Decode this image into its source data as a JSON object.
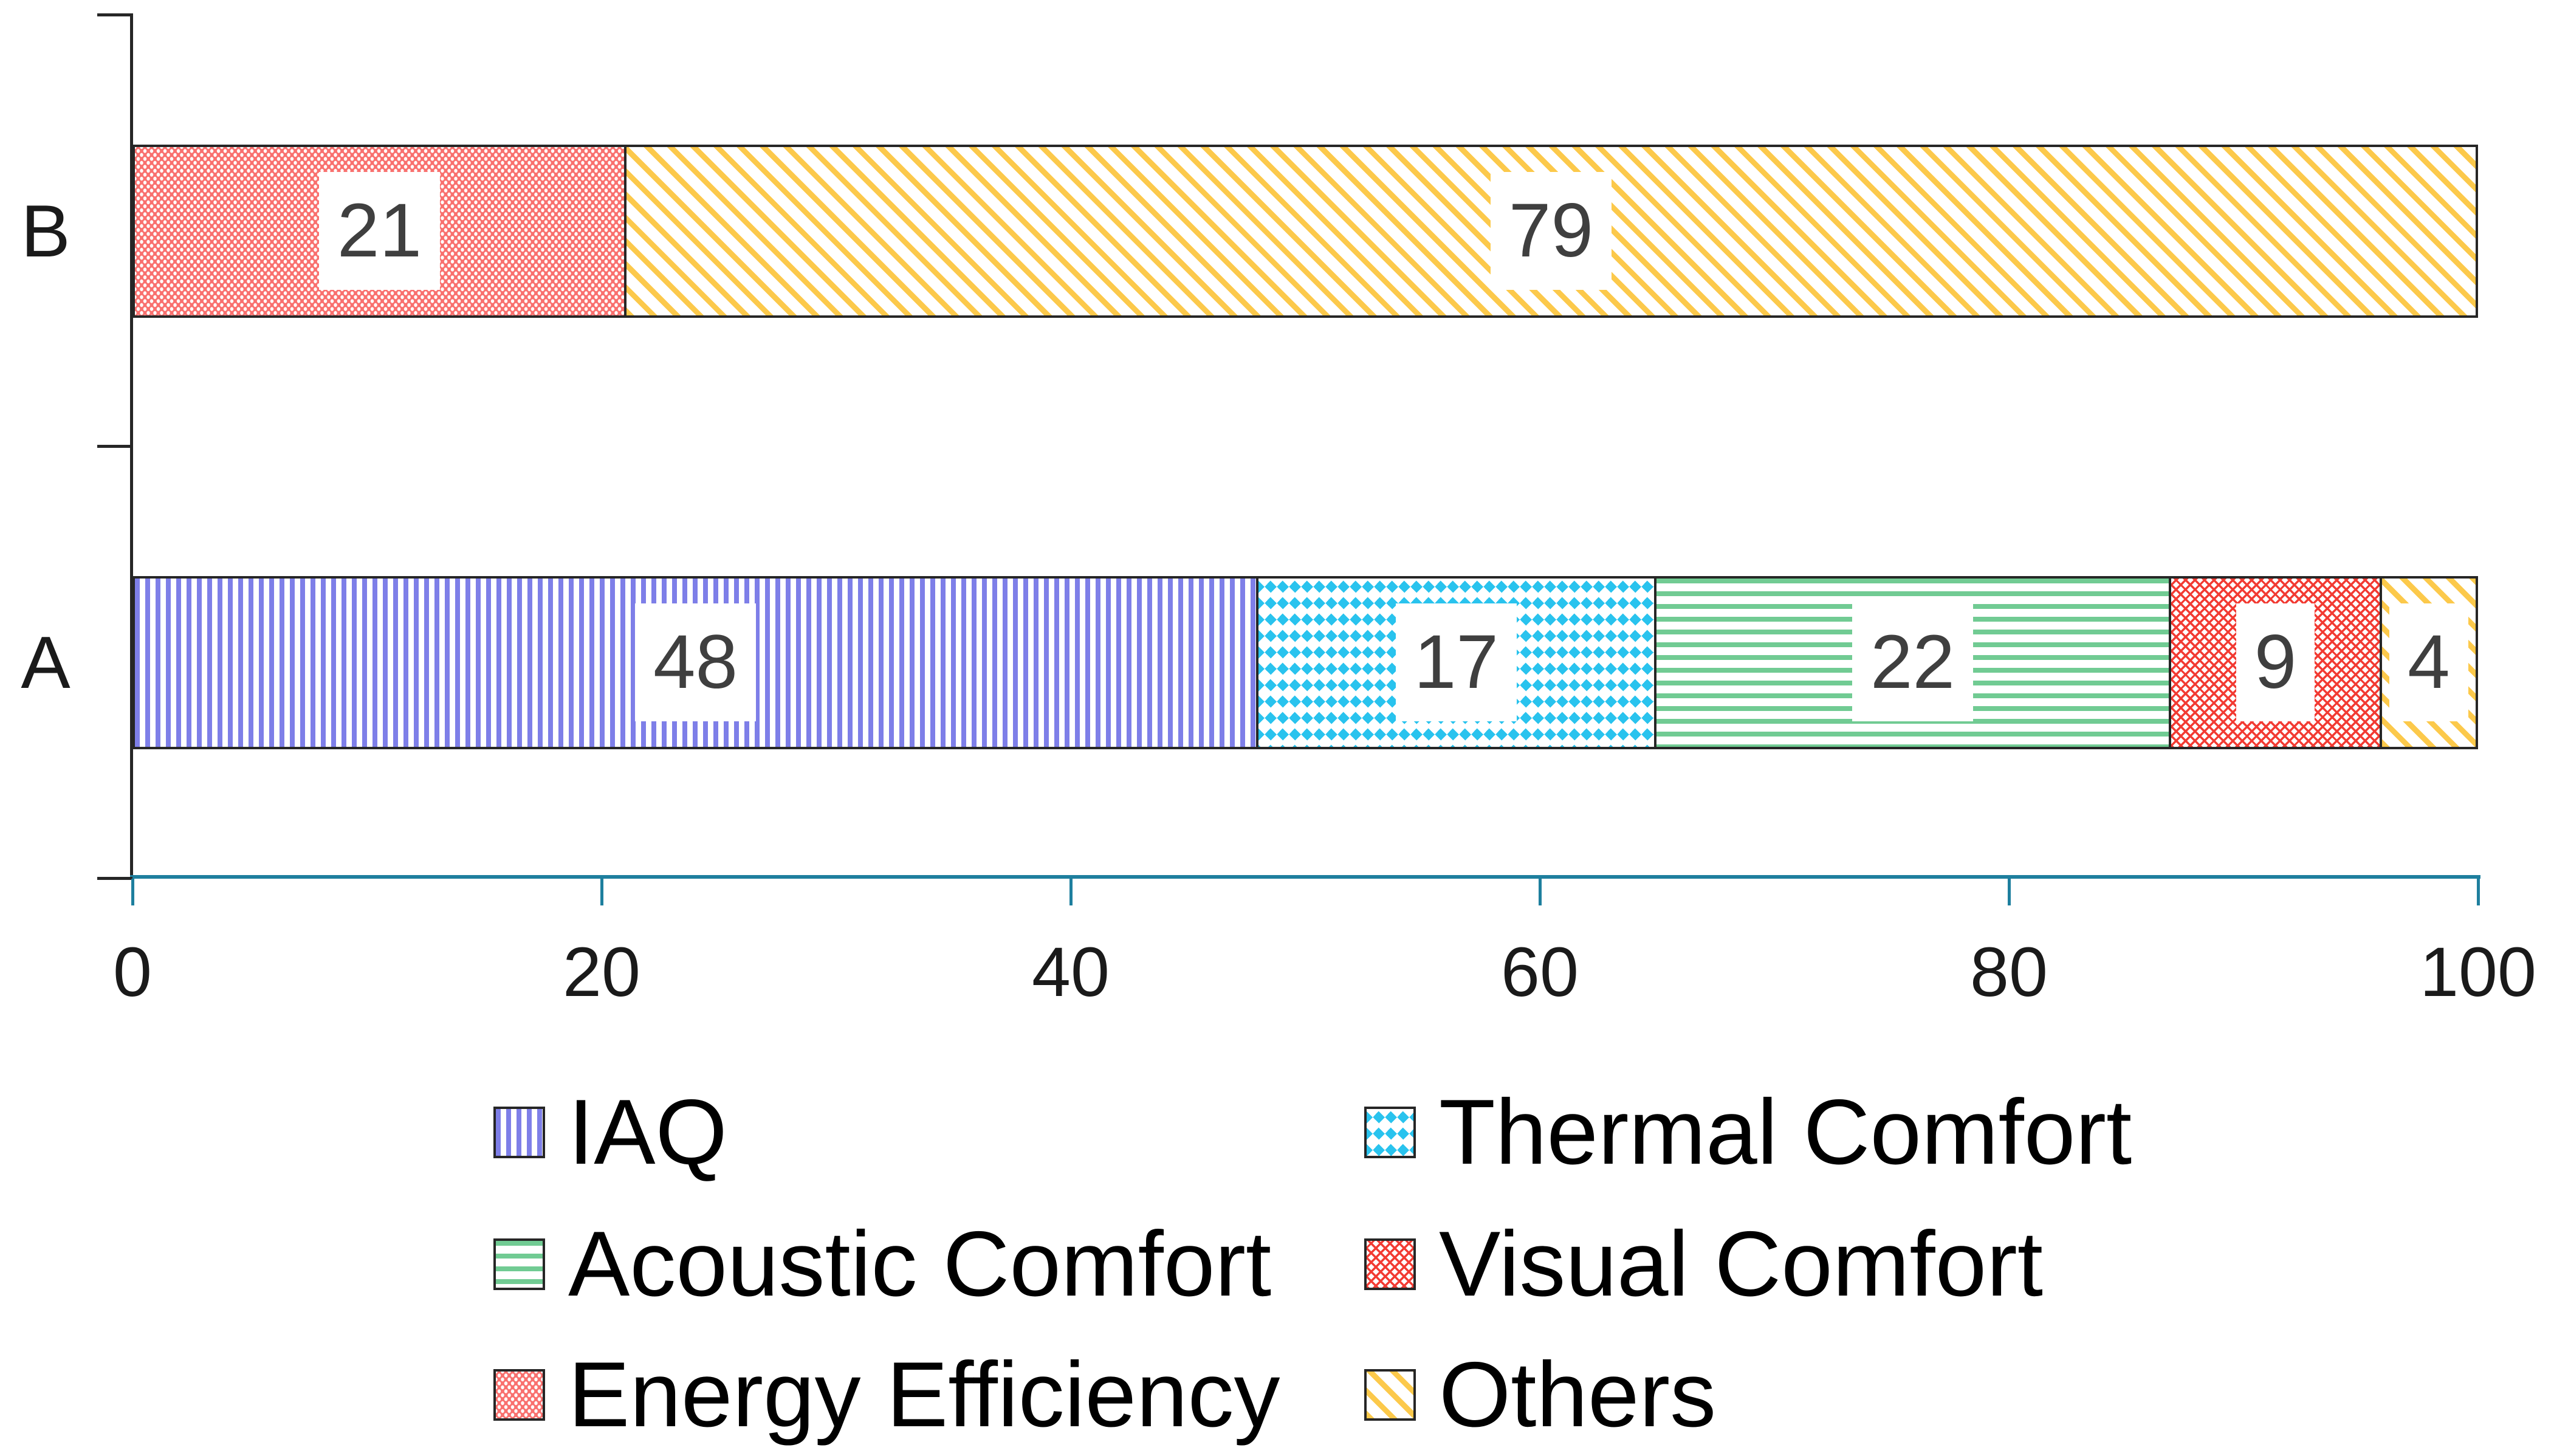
{
  "colors": {
    "iaq": "#7E7FE8",
    "thermal": "#29C3EE",
    "acoustic": "#71CB93",
    "visual": "#F23B33",
    "energy": "#F9706E",
    "others": "#FCC94B",
    "axis": "#1E7F9E",
    "bar_border": "#262626",
    "text": "#1A1A1A",
    "value_text": "#3F3F3F"
  },
  "chart_data": {
    "type": "bar",
    "orientation": "horizontal",
    "stacked": true,
    "title": "",
    "xlabel": "",
    "ylabel": "",
    "grid": false,
    "x_axis": {
      "min": 0,
      "max": 100,
      "ticks": [
        0,
        20,
        40,
        60,
        80,
        100
      ]
    },
    "categories": [
      "B",
      "A"
    ],
    "series": [
      {
        "name": "IAQ",
        "key": "iaq",
        "values": [
          0,
          48
        ]
      },
      {
        "name": "Thermal Comfort",
        "key": "thermal",
        "values": [
          0,
          17
        ]
      },
      {
        "name": "Acoustic Comfort",
        "key": "acoustic",
        "values": [
          0,
          22
        ]
      },
      {
        "name": "Visual Comfort",
        "key": "visual",
        "values": [
          0,
          9
        ]
      },
      {
        "name": "Energy Efficiency",
        "key": "energy",
        "values": [
          21,
          0
        ]
      },
      {
        "name": "Others",
        "key": "others",
        "values": [
          79,
          4
        ]
      }
    ],
    "bars": [
      {
        "category": "B",
        "segments": [
          {
            "series": "Energy Efficiency",
            "key": "energy",
            "value": 21
          },
          {
            "series": "Others",
            "key": "others",
            "value": 79
          }
        ]
      },
      {
        "category": "A",
        "segments": [
          {
            "series": "IAQ",
            "key": "iaq",
            "value": 48
          },
          {
            "series": "Thermal Comfort",
            "key": "thermal",
            "value": 17
          },
          {
            "series": "Acoustic Comfort",
            "key": "acoustic",
            "value": 22
          },
          {
            "series": "Visual Comfort",
            "key": "visual",
            "value": 9
          },
          {
            "series": "Others",
            "key": "others",
            "value": 4
          }
        ]
      }
    ],
    "legend": {
      "position": "bottom",
      "columns": 2,
      "items": [
        {
          "label": "IAQ",
          "key": "iaq"
        },
        {
          "label": "Thermal Comfort",
          "key": "thermal"
        },
        {
          "label": "Acoustic Comfort",
          "key": "acoustic"
        },
        {
          "label": "Visual Comfort",
          "key": "visual"
        },
        {
          "label": "Energy Efficiency",
          "key": "energy"
        },
        {
          "label": "Others",
          "key": "others"
        }
      ]
    }
  }
}
